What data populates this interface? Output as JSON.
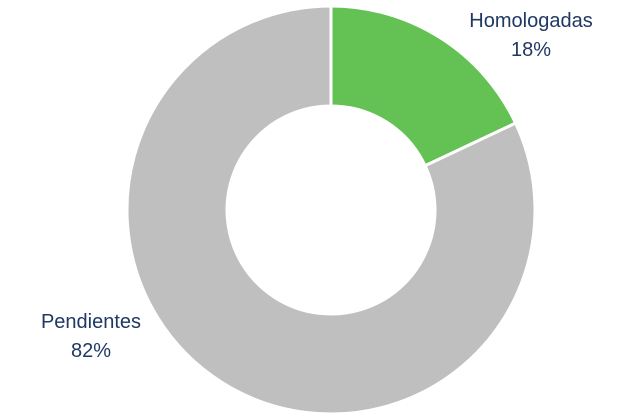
{
  "chart_data": {
    "type": "pie",
    "variant": "donut",
    "title": "",
    "legend": "none",
    "slices": [
      {
        "label": "Homologadas",
        "value": 18,
        "value_label": "18%",
        "color": "#64c255"
      },
      {
        "label": "Pendientes",
        "value": 82,
        "value_label": "82%",
        "color": "#bfbfbf"
      }
    ],
    "label_color": "#1f3864",
    "separator_color": "#ffffff"
  }
}
